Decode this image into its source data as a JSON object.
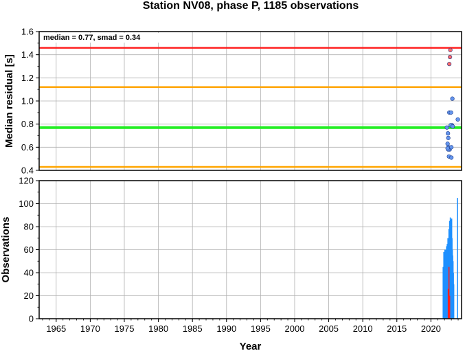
{
  "chart_data": [
    {
      "type": "scatter",
      "title": "Station NV08, phase P, 1185 observations",
      "xlabel": "",
      "ylabel": "Median residual [s]",
      "annotation": "median = 0.77, smad = 0.34",
      "xlim": [
        1962.5,
        2024.5
      ],
      "ylim": [
        0.4,
        1.6
      ],
      "yticks": [
        "0.4",
        "0.6",
        "0.8",
        "1.0",
        "1.2",
        "1.4",
        "1.6"
      ],
      "grid": true,
      "reference_lines": [
        {
          "value": 1.46,
          "color": "#ff2020"
        },
        {
          "value": 1.12,
          "color": "#ffa500"
        },
        {
          "value": 0.77,
          "color": "#22ee22"
        },
        {
          "value": 0.43,
          "color": "#ffa500"
        }
      ],
      "series": [
        {
          "color": "#ff6a6a",
          "x": [
            2022.85,
            2022.8,
            2022.7
          ],
          "y": [
            1.44,
            1.38,
            1.32
          ]
        },
        {
          "color": "#6495ed",
          "x": [
            2023.15,
            2023.95,
            2022.7,
            2022.95,
            2023.1,
            2022.35,
            2022.9,
            2023.2,
            2022.5,
            2022.55,
            2022.45,
            2022.6,
            2022.75,
            2022.55,
            2023.0,
            2022.45,
            2022.65,
            2023.0
          ],
          "y": [
            1.02,
            0.84,
            0.9,
            0.9,
            0.79,
            0.77,
            0.79,
            0.78,
            0.72,
            0.68,
            0.63,
            0.6,
            0.58,
            0.58,
            0.6,
            0.59,
            0.52,
            0.51
          ]
        }
      ]
    },
    {
      "type": "bar",
      "title": "",
      "xlabel": "Year",
      "ylabel": "Observations",
      "xlim": [
        1962.5,
        2024.5
      ],
      "ylim": [
        0,
        120
      ],
      "yticks": [
        "0",
        "20",
        "40",
        "60",
        "80",
        "100",
        "120"
      ],
      "xticks": [
        "1965",
        "1970",
        "1975",
        "1980",
        "1985",
        "1990",
        "1995",
        "2000",
        "2005",
        "2010",
        "2015",
        "2020"
      ],
      "grid": true,
      "series": [
        {
          "color": "#1e90ff",
          "x": [
            2021.8,
            2021.9,
            2022.0,
            2022.05,
            2022.1,
            2022.15,
            2022.2,
            2022.25,
            2022.3,
            2022.35,
            2022.4,
            2022.45,
            2022.5,
            2022.55,
            2022.6,
            2022.65,
            2022.7,
            2022.75,
            2022.8,
            2022.85,
            2022.9,
            2022.95,
            2023.0,
            2023.05,
            2023.1,
            2023.15,
            2023.2,
            2023.25,
            2023.3,
            2023.35,
            2023.9
          ],
          "values": [
            45,
            58,
            55,
            60,
            52,
            57,
            60,
            54,
            63,
            58,
            65,
            62,
            70,
            58,
            66,
            78,
            72,
            85,
            80,
            88,
            75,
            86,
            82,
            87,
            70,
            60,
            55,
            50,
            40,
            30,
            105
          ]
        },
        {
          "color": "#ff2020",
          "x": [
            2022.55,
            2022.65,
            2022.75
          ],
          "values": [
            26,
            45,
            20
          ]
        }
      ]
    }
  ]
}
